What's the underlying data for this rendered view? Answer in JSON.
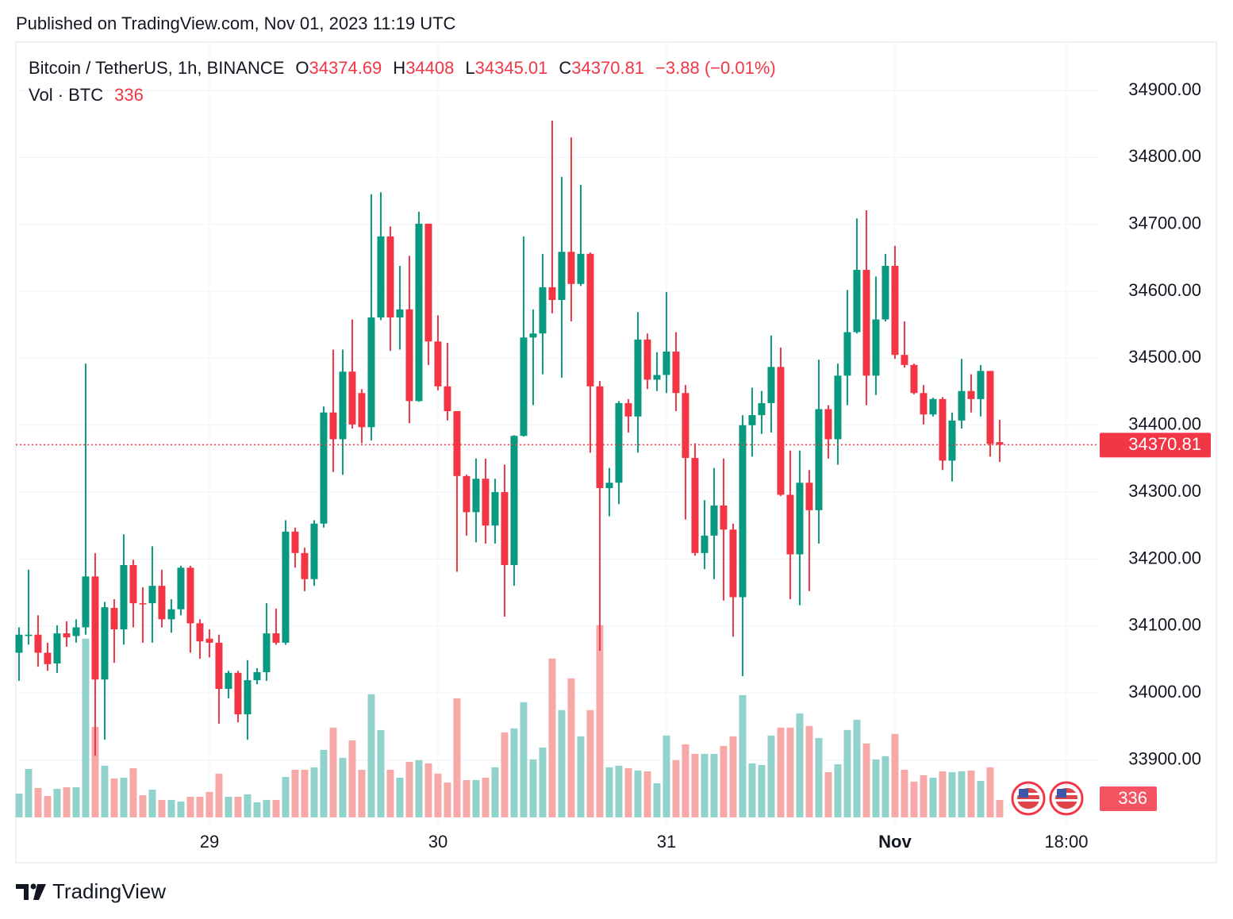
{
  "published": "Published on TradingView.com, Nov 01, 2023 11:19 UTC",
  "brand": "TradingView",
  "chart_data": {
    "type": "candlestick",
    "title": "Bitcoin / TetherUS, 1h, BINANCE",
    "ohlc_letters": [
      "O",
      "H",
      "L",
      "C"
    ],
    "change": "−3.88 (−0.01%)",
    "volume_title": "Vol · BTC",
    "up_color": "#089981",
    "down_color": "#f23645",
    "volume_up_color": "#92d2cc",
    "volume_down_color": "#f7a9a7",
    "grid": true,
    "xlim": [
      -0.33,
      113.42
    ],
    "xticks": [
      {
        "value": 20,
        "label": "29"
      },
      {
        "value": 44,
        "label": "30"
      },
      {
        "value": 68,
        "label": "31"
      },
      {
        "value": 92,
        "label": "Nov"
      },
      {
        "value": 110,
        "label": "18:00"
      }
    ],
    "ylim": [
      33814,
      34970
    ],
    "yticks": [
      {
        "value": 33900,
        "label": "33900.00"
      },
      {
        "value": 34000,
        "label": "34000.00"
      },
      {
        "value": 34100,
        "label": "34100.00"
      },
      {
        "value": 34200,
        "label": "34200.00"
      },
      {
        "value": 34300,
        "label": "34300.00"
      },
      {
        "value": 34400,
        "label": "34400.00"
      },
      {
        "value": 34500,
        "label": "34500.00"
      },
      {
        "value": 34600,
        "label": "34600.00"
      },
      {
        "value": 34700,
        "label": "34700.00"
      },
      {
        "value": 34800,
        "label": "34800.00"
      },
      {
        "value": 34900,
        "label": "34900.00"
      }
    ],
    "volume_ylim": [
      0,
      14900
    ],
    "open": [
      34060,
      34085,
      34087,
      34060,
      34044,
      34089,
      34085,
      34098,
      34174,
      34020,
      34127,
      34095,
      34191,
      34134,
      34134,
      34160,
      34110,
      34125,
      34187,
      34104,
      34081,
      34075,
      34006,
      34030,
      33968,
      34019,
      34031,
      34089,
      34075,
      34241,
      34209,
      34170,
      34253,
      34419,
      34379,
      34480,
      34448,
      34397,
      34561,
      34682,
      34561,
      34573,
      34436,
      34701,
      34525,
      34458,
      34421,
      34324,
      34270,
      34320,
      34250,
      34300,
      34191,
      34384,
      34531,
      34537,
      34606,
      34587,
      34659,
      34611,
      34656,
      34458,
      34306,
      34314,
      34433,
      34413,
      34528,
      34468,
      34475,
      34510,
      34448,
      34351,
      34209,
      34235,
      34280,
      34244,
      34143,
      34400,
      34415,
      34433,
      34487,
      34296,
      34207,
      34314,
      34273,
      34424,
      34379,
      34474,
      34539,
      34632,
      34474,
      34558,
      34638,
      34505,
      34490,
      34448,
      34416,
      34439,
      34347,
      34407,
      34451,
      34439,
      34481,
      34374.69
    ],
    "high": [
      34098,
      34184,
      34116,
      34075,
      34101,
      34107,
      34110,
      34492,
      34209,
      34136,
      34140,
      34237,
      34199,
      34158,
      34219,
      34184,
      34140,
      34190,
      34190,
      34110,
      34095,
      34087,
      34033,
      34033,
      34049,
      34037,
      34134,
      34126,
      34258,
      34247,
      34217,
      34258,
      34428,
      34513,
      34513,
      34558,
      34454,
      34745,
      34748,
      34697,
      34638,
      34653,
      34719,
      34701,
      34564,
      34523,
      34421,
      34326,
      34350,
      34350,
      34320,
      34341,
      34385,
      34682,
      34573,
      34656,
      34855,
      34771,
      34830,
      34759,
      34658,
      34466,
      34336,
      34436,
      34439,
      34569,
      34537,
      34509,
      34599,
      34539,
      34460,
      34373,
      34288,
      34336,
      34350,
      34253,
      34415,
      34456,
      34451,
      34534,
      34516,
      34362,
      34362,
      34333,
      34498,
      34430,
      34492,
      34602,
      34709,
      34721,
      34622,
      34656,
      34668,
      34555,
      34492,
      34460,
      34441,
      34442,
      34419,
      34499,
      34476,
      34490,
      34481,
      34408.0
    ],
    "low": [
      34018,
      34072,
      34039,
      34033,
      34030,
      34069,
      34075,
      34087,
      33906,
      33930,
      34045,
      34072,
      34098,
      34075,
      34075,
      34098,
      34090,
      34116,
      34060,
      34051,
      34053,
      33954,
      33992,
      33956,
      33930,
      34013,
      34018,
      34072,
      34072,
      34187,
      34152,
      34160,
      34247,
      34330,
      34326,
      34395,
      34373,
      34377,
      34557,
      34511,
      34513,
      34403,
      34435,
      34490,
      34452,
      34407,
      34181,
      34235,
      34225,
      34223,
      34223,
      34114,
      34160,
      34383,
      34430,
      34476,
      34567,
      34471,
      34555,
      34608,
      34359,
      34063,
      34264,
      34282,
      34389,
      34359,
      34454,
      34451,
      34448,
      34421,
      34259,
      34205,
      34185,
      34170,
      34138,
      34084,
      34025,
      34353,
      34387,
      34389,
      34294,
      34140,
      34131,
      34152,
      34223,
      34350,
      34341,
      34430,
      34537,
      34430,
      34445,
      34555,
      34499,
      34486,
      34446,
      34401,
      34413,
      34333,
      34316,
      34395,
      34419,
      34413,
      34353,
      34345.01
    ],
    "close": [
      34087,
      34087,
      34060,
      34043,
      34089,
      34083,
      34098,
      34174,
      34020,
      34128,
      34095,
      34191,
      34134,
      34133,
      34160,
      34110,
      34125,
      34187,
      34104,
      34077,
      34075,
      34006,
      34030,
      33968,
      34019,
      34031,
      34089,
      34075,
      34241,
      34209,
      34170,
      34253,
      34419,
      34379,
      34480,
      34401,
      34397,
      34561,
      34682,
      34561,
      34573,
      34436,
      34701,
      34525,
      34458,
      34421,
      34324,
      34270,
      34320,
      34250,
      34300,
      34191,
      34384,
      34531,
      34537,
      34606,
      34587,
      34659,
      34611,
      34656,
      34458,
      34306,
      34314,
      34433,
      34413,
      34528,
      34468,
      34475,
      34510,
      34448,
      34351,
      34209,
      34235,
      34280,
      34244,
      34143,
      34400,
      34415,
      34433,
      34487,
      34296,
      34207,
      34314,
      34273,
      34424,
      34379,
      34474,
      34539,
      34632,
      34474,
      34558,
      34638,
      34505,
      34490,
      34448,
      34416,
      34439,
      34347,
      34407,
      34451,
      34439,
      34481,
      34372,
      34370.81
    ],
    "volume": [
      459,
      933,
      566,
      413,
      551,
      581,
      581,
      3442,
      1744,
      995,
      750,
      765,
      949,
      428,
      535,
      337,
      337,
      306,
      398,
      398,
      490,
      842,
      398,
      398,
      444,
      291,
      337,
      337,
      780,
      918,
      918,
      964,
      1300,
      1729,
      1148,
      1484,
      918,
      2372,
      1683,
      918,
      765,
      1071,
      1102,
      1040,
      842,
      673,
      2295,
      719,
      719,
      765,
      964,
      1637,
      1714,
      2219,
      1117,
      1346,
      3060,
      2066,
      2678,
      1561,
      2066,
      3703,
      964,
      995,
      949,
      903,
      887,
      658,
      1576,
      1102,
      1408,
      1224,
      1224,
      1224,
      1377,
      1561,
      2356,
      1040,
      1010,
      1576,
      1729,
      1729,
      2004,
      1760,
      1530,
      872,
      1025,
      1683,
      1882,
      1423,
      1117,
      1178,
      1607,
      918,
      689,
      811,
      765,
      887,
      872,
      887,
      903,
      704,
      964,
      336
    ]
  }
}
